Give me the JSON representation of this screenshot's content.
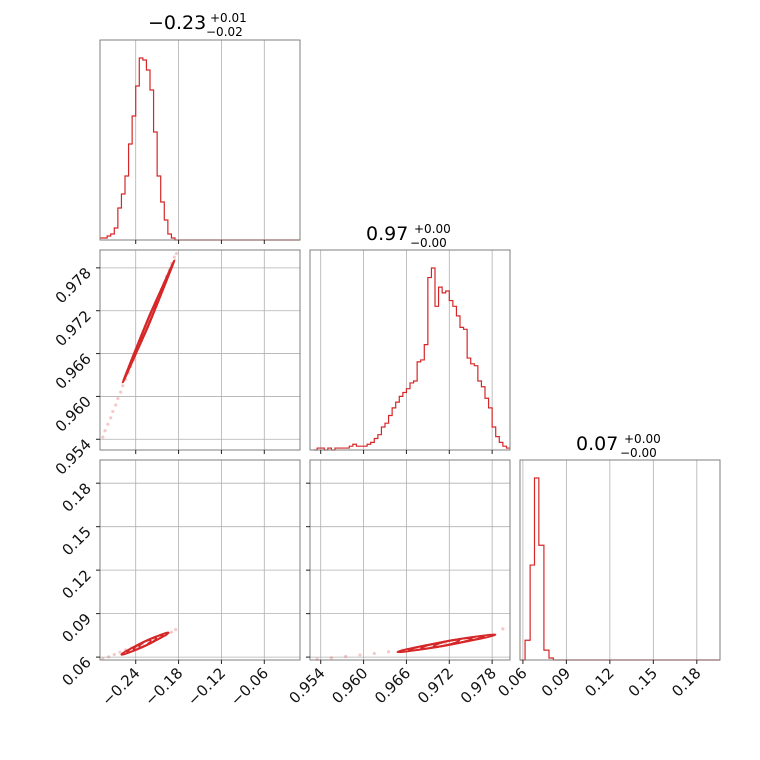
{
  "chart_data": {
    "type": "corner",
    "color": "#d62728",
    "grid": true,
    "parameters": [
      {
        "title_main": "−0.23",
        "title_plus": "+0.01",
        "title_minus": "−0.02",
        "range": [
          -0.29,
          -0.01
        ]
      },
      {
        "title_main": "0.97",
        "title_plus": "+0.00",
        "title_minus": "−0.00",
        "range": [
          0.9525,
          0.9805
        ]
      },
      {
        "title_main": "0.07",
        "title_plus": "+0.00",
        "title_minus": "−0.00",
        "range": [
          0.058,
          0.196
        ]
      }
    ],
    "ticks": [
      {
        "values": [
          -0.24,
          -0.18,
          -0.12,
          -0.06
        ],
        "labels": [
          "−0.24",
          "−0.18",
          "−0.12",
          "−0.06"
        ]
      },
      {
        "values": [
          0.954,
          0.96,
          0.966,
          0.972,
          0.978
        ],
        "labels": [
          "0.954",
          "0.960",
          "0.966",
          "0.972",
          "0.978"
        ]
      },
      {
        "values": [
          0.06,
          0.09,
          0.12,
          0.15,
          0.18
        ],
        "labels": [
          "0.06",
          "0.09",
          "0.12",
          "0.15",
          "0.18"
        ]
      }
    ],
    "histograms": [
      {
        "param": 0,
        "edges": [
          -0.29,
          -0.285,
          -0.28,
          -0.275,
          -0.27,
          -0.265,
          -0.26,
          -0.255,
          -0.25,
          -0.245,
          -0.24,
          -0.235,
          -0.23,
          -0.225,
          -0.22,
          -0.215,
          -0.21,
          -0.205,
          -0.2,
          -0.195,
          -0.19,
          -0.185,
          -0.18,
          -0.01
        ],
        "counts": [
          1,
          1,
          2,
          3,
          6,
          16,
          23,
          32,
          48,
          62,
          77,
          91,
          90,
          85,
          75,
          54,
          32,
          19,
          10,
          3,
          1,
          0,
          0
        ]
      },
      {
        "param": 1,
        "edges": [
          0.953,
          0.9535,
          0.954,
          0.9545,
          0.955,
          0.9555,
          0.956,
          0.9565,
          0.957,
          0.9575,
          0.958,
          0.9585,
          0.959,
          0.9595,
          0.96,
          0.9605,
          0.961,
          0.9615,
          0.962,
          0.9625,
          0.963,
          0.9635,
          0.964,
          0.9645,
          0.965,
          0.9655,
          0.966,
          0.9665,
          0.967,
          0.9675,
          0.968,
          0.9685,
          0.969,
          0.9695,
          0.97,
          0.9705,
          0.971,
          0.9715,
          0.972,
          0.9725,
          0.973,
          0.9735,
          0.974,
          0.9745,
          0.975,
          0.9755,
          0.976,
          0.9765,
          0.977,
          0.9775,
          0.978,
          0.9785,
          0.979,
          0.9795,
          0.98,
          0.9805
        ],
        "counts": [
          0,
          1,
          1,
          0,
          1,
          0,
          1,
          1,
          1,
          1,
          2,
          3,
          2,
          2,
          2,
          3,
          4,
          6,
          8,
          12,
          14,
          18,
          22,
          25,
          28,
          30,
          32,
          35,
          36,
          46,
          47,
          55,
          90,
          95,
          75,
          85,
          82,
          83,
          78,
          75,
          70,
          64,
          63,
          48,
          45,
          44,
          36,
          33,
          27,
          22,
          12,
          7,
          4,
          2,
          1,
          1
        ]
      },
      {
        "param": 2,
        "edges": [
          0.058,
          0.0615,
          0.065,
          0.068,
          0.071,
          0.0745,
          0.078,
          0.081,
          0.196
        ],
        "counts": [
          0,
          10,
          48,
          92,
          58,
          5,
          1,
          0
        ]
      }
    ],
    "scatter_2d": [
      {
        "x_param": 0,
        "y_param": 1,
        "x": [
          -0.286,
          -0.283,
          -0.279,
          -0.275,
          -0.272,
          -0.268,
          -0.265,
          -0.261,
          -0.258,
          -0.254,
          -0.25,
          -0.247,
          -0.243,
          -0.24,
          -0.236,
          -0.232,
          -0.229,
          -0.225,
          -0.222,
          -0.218,
          -0.214,
          -0.211,
          -0.207,
          -0.204,
          -0.2,
          -0.197,
          -0.193,
          -0.19,
          -0.186,
          -0.183
        ],
        "y": [
          0.9543,
          0.9552,
          0.9561,
          0.957,
          0.9579,
          0.9588,
          0.9597,
          0.9606,
          0.9615,
          0.9624,
          0.9633,
          0.9642,
          0.9651,
          0.966,
          0.9669,
          0.9678,
          0.9687,
          0.9696,
          0.9705,
          0.9714,
          0.9723,
          0.9732,
          0.9741,
          0.975,
          0.9759,
          0.9768,
          0.9777,
          0.9786,
          0.9795,
          0.98
        ]
      },
      {
        "x_param": 0,
        "y_param": 2,
        "x": [
          -0.286,
          -0.278,
          -0.27,
          -0.262,
          -0.254,
          -0.246,
          -0.238,
          -0.23,
          -0.222,
          -0.214,
          -0.206,
          -0.198,
          -0.19,
          -0.184
        ],
        "y": [
          0.0588,
          0.0602,
          0.0618,
          0.0634,
          0.065,
          0.0663,
          0.0675,
          0.0688,
          0.0702,
          0.0718,
          0.0735,
          0.0752,
          0.0772,
          0.079
        ]
      },
      {
        "x_param": 1,
        "y_param": 2,
        "x": [
          0.9535,
          0.9555,
          0.9575,
          0.9595,
          0.9615,
          0.9635,
          0.9655,
          0.9675,
          0.9695,
          0.9715,
          0.9735,
          0.9755,
          0.9775,
          0.9795
        ],
        "y": [
          0.0585,
          0.0595,
          0.0605,
          0.0615,
          0.0625,
          0.0637,
          0.0648,
          0.066,
          0.0673,
          0.0688,
          0.0705,
          0.0725,
          0.0752,
          0.0795
        ]
      }
    ],
    "contours_2d": [
      {
        "x_param": 0,
        "y_param": 1,
        "center": [
          -0.222,
          0.9705
        ],
        "levels": [
          {
            "dx": 0.036,
            "dy": 0.0085,
            "w": 0.0004
          },
          {
            "dx": 0.029,
            "dy": 0.0068,
            "w": 0.0005
          },
          {
            "dx": 0.02,
            "dy": 0.0047,
            "w": 0.0006
          },
          {
            "dx": 0.011,
            "dy": 0.0026,
            "w": 0.0006
          }
        ]
      },
      {
        "x_param": 0,
        "y_param": 2,
        "center": [
          -0.227,
          0.0693
        ],
        "levels": [
          {
            "dx": 0.033,
            "dy": 0.0075,
            "w": 0.0016
          },
          {
            "dx": 0.025,
            "dy": 0.0057,
            "w": 0.0018
          },
          {
            "dx": 0.016,
            "dy": 0.0037,
            "w": 0.0018
          },
          {
            "dx": 0.008,
            "dy": 0.0019,
            "w": 0.0016
          }
        ]
      },
      {
        "x_param": 1,
        "y_param": 2,
        "center": [
          0.9716,
          0.0695
        ],
        "levels": [
          {
            "dx": 0.0068,
            "dy": 0.0058,
            "w": 0.0018
          },
          {
            "dx": 0.0052,
            "dy": 0.0045,
            "w": 0.002
          },
          {
            "dx": 0.0035,
            "dy": 0.003,
            "w": 0.002
          },
          {
            "dx": 0.0017,
            "dy": 0.0016,
            "w": 0.0018
          }
        ]
      }
    ]
  }
}
